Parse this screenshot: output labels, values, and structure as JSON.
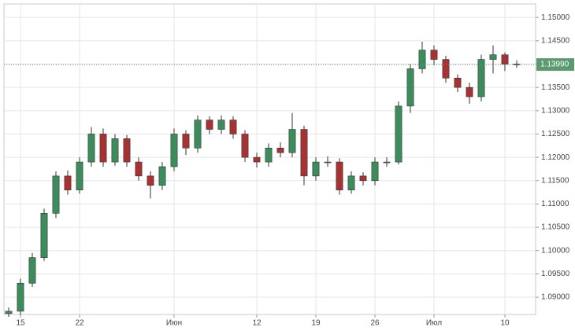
{
  "chart_data": {
    "type": "candlestick",
    "x": [
      -1,
      0,
      1,
      2,
      3,
      4,
      5,
      6,
      7,
      8,
      9,
      10,
      11,
      12,
      13,
      14,
      15,
      16,
      17,
      18,
      19,
      20,
      21,
      22,
      23,
      24,
      25,
      26,
      27,
      28,
      29,
      30,
      31,
      32,
      33,
      34,
      35,
      36,
      37,
      38,
      39,
      40,
      41,
      42
    ],
    "open": [
      1.0865,
      1.087,
      1.093,
      1.0985,
      1.108,
      1.116,
      1.113,
      1.119,
      1.125,
      1.119,
      1.124,
      1.119,
      1.116,
      1.114,
      1.118,
      1.125,
      1.122,
      1.128,
      1.126,
      1.128,
      1.125,
      1.12,
      1.119,
      1.122,
      1.121,
      1.126,
      1.116,
      1.119,
      1.119,
      1.113,
      1.116,
      1.115,
      1.119,
      1.119,
      1.131,
      1.139,
      1.143,
      1.141,
      1.137,
      1.135,
      1.133,
      1.141,
      1.142,
      1.14
    ],
    "high": [
      1.0878,
      1.094,
      1.0995,
      1.109,
      1.117,
      1.1172,
      1.12,
      1.1265,
      1.1262,
      1.125,
      1.1248,
      1.12,
      1.117,
      1.119,
      1.1262,
      1.1258,
      1.129,
      1.1288,
      1.129,
      1.1288,
      1.1258,
      1.121,
      1.123,
      1.1232,
      1.1295,
      1.1268,
      1.12,
      1.1202,
      1.1198,
      1.117,
      1.1168,
      1.12,
      1.12,
      1.132,
      1.14,
      1.1448,
      1.144,
      1.1418,
      1.1378,
      1.136,
      1.142,
      1.144,
      1.1425,
      1.1408
    ],
    "low": [
      1.0858,
      1.0862,
      1.0922,
      1.0978,
      1.107,
      1.112,
      1.1122,
      1.118,
      1.118,
      1.1182,
      1.118,
      1.115,
      1.1112,
      1.113,
      1.117,
      1.1205,
      1.121,
      1.125,
      1.125,
      1.124,
      1.119,
      1.1178,
      1.118,
      1.12,
      1.12,
      1.114,
      1.115,
      1.118,
      1.112,
      1.1122,
      1.114,
      1.114,
      1.118,
      1.1185,
      1.1295,
      1.138,
      1.1398,
      1.136,
      1.134,
      1.1315,
      1.132,
      1.138,
      1.1385,
      1.1392
    ],
    "close": [
      1.087,
      1.093,
      1.0985,
      1.108,
      1.116,
      1.113,
      1.119,
      1.125,
      1.119,
      1.124,
      1.119,
      1.116,
      1.114,
      1.118,
      1.125,
      1.122,
      1.128,
      1.126,
      1.128,
      1.125,
      1.12,
      1.119,
      1.122,
      1.121,
      1.126,
      1.116,
      1.119,
      1.119,
      1.113,
      1.116,
      1.115,
      1.119,
      1.119,
      1.131,
      1.139,
      1.143,
      1.141,
      1.137,
      1.135,
      1.133,
      1.141,
      1.142,
      1.14,
      1.1399
    ],
    "up_color": "#3d8c5c",
    "down_color": "#a83232",
    "xlim": [
      -1.4,
      43.6
    ],
    "xticks": [
      {
        "value": 0,
        "label": "15"
      },
      {
        "value": 5,
        "label": "22"
      },
      {
        "value": 13,
        "label": "Июн"
      },
      {
        "value": 20,
        "label": "12"
      },
      {
        "value": 25,
        "label": "19"
      },
      {
        "value": 30,
        "label": "26"
      },
      {
        "value": 35,
        "label": "Июл"
      },
      {
        "value": 41,
        "label": "10"
      }
    ],
    "ylim": [
      1.0863,
      1.1529
    ],
    "yticks": [
      {
        "value": 1.09,
        "label": "1.09000"
      },
      {
        "value": 1.095,
        "label": "1.09500"
      },
      {
        "value": 1.1,
        "label": "1.10000"
      },
      {
        "value": 1.105,
        "label": "1.10500"
      },
      {
        "value": 1.11,
        "label": "1.11000"
      },
      {
        "value": 1.115,
        "label": "1.11500"
      },
      {
        "value": 1.12,
        "label": "1.12000"
      },
      {
        "value": 1.125,
        "label": "1.12500"
      },
      {
        "value": 1.13,
        "label": "1.13000"
      },
      {
        "value": 1.135,
        "label": "1.13500"
      },
      {
        "value": 1.14,
        "label": "1.14000"
      },
      {
        "value": 1.145,
        "label": "1.14500"
      },
      {
        "value": 1.15,
        "label": "1.15000"
      }
    ],
    "grid": true,
    "price_line": {
      "value": 1.1399,
      "label": "1.13990",
      "color": "#5a9a6e"
    }
  }
}
